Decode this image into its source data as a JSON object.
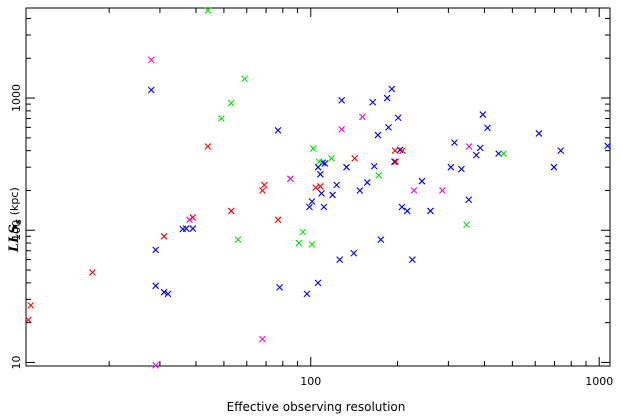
{
  "chart_data": {
    "type": "scatter",
    "title": "",
    "xlabel": "Effective observing resolution",
    "ylabel": {
      "main": "LLS",
      "subscript": "s",
      "unit": "(kpc)"
    },
    "x_scale": "log",
    "y_scale": "log",
    "xlim": [
      10.3,
      1090
    ],
    "ylim": [
      9.4,
      4800
    ],
    "x_ticks": [
      100,
      1000
    ],
    "x_tick_labels": [
      "100",
      "1000"
    ],
    "y_ticks": [
      10,
      100,
      1000
    ],
    "y_tick_labels": [
      "10",
      "100",
      "1000"
    ],
    "grid": false,
    "legend": "none",
    "marker": "x",
    "series": [
      {
        "color": "#0000ee",
        "points": [
          [
            28,
            1150
          ],
          [
            29,
            71
          ],
          [
            29,
            38
          ],
          [
            31,
            34
          ],
          [
            32,
            33
          ],
          [
            36,
            102
          ],
          [
            37,
            103
          ],
          [
            39,
            103
          ],
          [
            77,
            570
          ],
          [
            78,
            37
          ],
          [
            97,
            33
          ],
          [
            99,
            150
          ],
          [
            101,
            165
          ],
          [
            106,
            40
          ],
          [
            106,
            300
          ],
          [
            108,
            265
          ],
          [
            109,
            190
          ],
          [
            110,
            325
          ],
          [
            111,
            150
          ],
          [
            112,
            320
          ],
          [
            119,
            185
          ],
          [
            123,
            220
          ],
          [
            126,
            60
          ],
          [
            128,
            960
          ],
          [
            133,
            300
          ],
          [
            141,
            67
          ],
          [
            148,
            200
          ],
          [
            157,
            230
          ],
          [
            164,
            930
          ],
          [
            166,
            305
          ],
          [
            171,
            525
          ],
          [
            175,
            85
          ],
          [
            184,
            1000
          ],
          [
            186,
            600
          ],
          [
            191,
            1170
          ],
          [
            195,
            330
          ],
          [
            201,
            710
          ],
          [
            204,
            405
          ],
          [
            207,
            150
          ],
          [
            216,
            140
          ],
          [
            225,
            60
          ],
          [
            243,
            235
          ],
          [
            260,
            140
          ],
          [
            306,
            300
          ],
          [
            315,
            460
          ],
          [
            333,
            290
          ],
          [
            353,
            170
          ],
          [
            375,
            370
          ],
          [
            387,
            420
          ],
          [
            395,
            750
          ],
          [
            410,
            595
          ],
          [
            448,
            380
          ],
          [
            618,
            540
          ],
          [
            697,
            300
          ],
          [
            736,
            400
          ],
          [
            1070,
            435
          ]
        ]
      },
      {
        "color": "#00e000",
        "points": [
          [
            44,
            4600
          ],
          [
            49,
            700
          ],
          [
            53,
            915
          ],
          [
            56,
            85
          ],
          [
            59,
            1400
          ],
          [
            91,
            80
          ],
          [
            94,
            97
          ],
          [
            101,
            78
          ],
          [
            102,
            415
          ],
          [
            107,
            330
          ],
          [
            118,
            350
          ],
          [
            172,
            260
          ],
          [
            347,
            110
          ],
          [
            466,
            380
          ]
        ]
      },
      {
        "color": "#ff0000",
        "points": [
          [
            10.5,
            21
          ],
          [
            10.7,
            27
          ],
          [
            17.5,
            48
          ],
          [
            31,
            90
          ],
          [
            39,
            125
          ],
          [
            44,
            430
          ],
          [
            53,
            140
          ],
          [
            68,
            200
          ],
          [
            69,
            220
          ],
          [
            77,
            120
          ],
          [
            104,
            210
          ],
          [
            108,
            215
          ],
          [
            142,
            350
          ],
          [
            196,
            400
          ],
          [
            197,
            330
          ],
          [
            208,
            400
          ]
        ]
      },
      {
        "color": "#ee00ee",
        "points": [
          [
            28,
            1950
          ],
          [
            29,
            9.5
          ],
          [
            38,
            120
          ],
          [
            68,
            15
          ],
          [
            85,
            245
          ],
          [
            128,
            580
          ],
          [
            151,
            720
          ],
          [
            228,
            200
          ],
          [
            286,
            200
          ],
          [
            354,
            430
          ]
        ]
      }
    ]
  }
}
